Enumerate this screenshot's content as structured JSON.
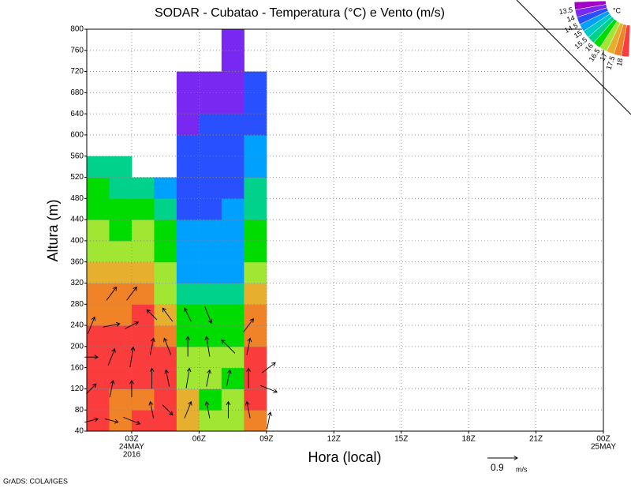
{
  "chart_data": {
    "type": "contour",
    "title": "SODAR - Cubatao - Temperatura (°C) e Vento (m/s)",
    "xlabel": "Hora (local)",
    "ylabel": "Altura (m)",
    "credit": "GrADS: COLA/IGES",
    "x": [
      1.5,
      2.5,
      3.5,
      4.5,
      5.5,
      6.5,
      7.5,
      8.5
    ],
    "y": [
      60,
      100,
      140,
      180,
      220,
      260,
      300,
      340,
      380,
      420,
      460,
      500,
      540,
      580,
      620,
      660,
      700,
      740,
      780
    ],
    "z": [
      [
        18.2,
        18.2,
        18.2,
        18.2,
        18.2,
        17.75,
        17.75,
        17.25,
        16.75,
        16.75,
        16.25,
        16.25,
        15.75,
        null,
        null,
        null,
        null,
        null,
        null
      ],
      [
        17.75,
        17.75,
        18.2,
        18.2,
        18.2,
        17.75,
        17.75,
        17.25,
        16.75,
        16.25,
        16.25,
        15.75,
        15.75,
        null,
        null,
        null,
        null,
        null,
        null
      ],
      [
        18.2,
        17.75,
        18.2,
        18.2,
        18.2,
        18.2,
        17.75,
        17.25,
        16.75,
        16.75,
        16.25,
        15.75,
        null,
        null,
        null,
        null,
        null,
        null,
        null
      ],
      [
        18.2,
        18.2,
        18.2,
        18.2,
        17.75,
        17.25,
        16.75,
        16.75,
        16.25,
        16.25,
        15.75,
        14.75,
        null,
        null,
        null,
        null,
        null,
        null,
        null
      ],
      [
        17.25,
        17.25,
        16.75,
        16.75,
        16.25,
        16.25,
        15.75,
        14.75,
        14.75,
        14.75,
        14.25,
        14.25,
        14.25,
        14.25,
        13.75,
        13.75,
        13.75,
        null,
        null
      ],
      [
        16.75,
        16.25,
        16.75,
        16.75,
        16.25,
        16.25,
        15.75,
        14.75,
        14.75,
        14.75,
        14.25,
        14.25,
        14.25,
        14.25,
        14.25,
        13.75,
        13.75,
        null,
        null
      ],
      [
        16.75,
        16.75,
        16.25,
        16.75,
        16.25,
        16.25,
        15.75,
        14.75,
        14.75,
        14.75,
        14.75,
        14.25,
        14.25,
        14.25,
        14.25,
        13.75,
        13.75,
        13.75,
        13.75
      ],
      [
        17.75,
        18.2,
        18.2,
        18.2,
        17.75,
        17.75,
        17.25,
        16.75,
        16.25,
        16.25,
        15.75,
        15.75,
        14.75,
        14.75,
        14.25,
        14.25,
        14.25,
        null,
        null
      ]
    ],
    "levels": [
      13.5,
      14,
      14.5,
      15,
      15.5,
      16,
      16.5,
      17,
      17.5,
      18
    ],
    "colors": [
      "#a000c8",
      "#7828f0",
      "#2850ff",
      "#00a0ff",
      "#00c8c8",
      "#00d28c",
      "#00dc00",
      "#a0e632",
      "#e6af2d",
      "#f08228",
      "#fa3c3c"
    ],
    "colorbar_unit": "°C",
    "xlim": [
      1,
      24
    ],
    "xticks": [
      {
        "value": 3,
        "label": "03Z"
      },
      {
        "value": 6,
        "label": "06Z"
      },
      {
        "value": 9,
        "label": "09Z"
      },
      {
        "value": 12,
        "label": "12Z"
      },
      {
        "value": 15,
        "label": "15Z"
      },
      {
        "value": 18,
        "label": "18Z"
      },
      {
        "value": 21,
        "label": "21Z"
      },
      {
        "value": 24,
        "label": "00Z"
      }
    ],
    "date_labels": [
      {
        "value": 3,
        "lines": [
          "24MAY",
          "2016"
        ]
      },
      {
        "value": 24,
        "lines": [
          "25MAY"
        ]
      }
    ],
    "ylim": [
      40,
      800
    ],
    "yticks": [
      40,
      80,
      120,
      160,
      200,
      240,
      280,
      320,
      360,
      400,
      440,
      480,
      520,
      560,
      600,
      640,
      680,
      720,
      760,
      800
    ],
    "grid": true,
    "wind": {
      "x": [
        1.2,
        1.2,
        1.2,
        1.2,
        2.1,
        2.1,
        2.1,
        2.1,
        2.1,
        3,
        3,
        3,
        3,
        3,
        3.9,
        3.9,
        3.9,
        3.9,
        4.6,
        4.6,
        4.6,
        4.6,
        5.5,
        5.5,
        5.5,
        5.5,
        6.4,
        6.4,
        6.4,
        6.4,
        7.3,
        7.3,
        7.3,
        8.2,
        8.2,
        8.2,
        8.2,
        9.1,
        9.1,
        9.1
      ],
      "y": [
        60,
        120,
        180,
        240,
        60,
        120,
        180,
        240,
        300,
        60,
        120,
        180,
        240,
        300,
        80,
        140,
        200,
        260,
        80,
        140,
        200,
        260,
        80,
        140,
        200,
        260,
        80,
        140,
        200,
        260,
        80,
        140,
        200,
        80,
        140,
        200,
        240,
        60,
        120,
        160
      ],
      "u": [
        0.4,
        0.3,
        0.4,
        0.2,
        0.4,
        0.1,
        0.2,
        0.5,
        0.3,
        0.5,
        0,
        0.1,
        0.4,
        0.3,
        -0.1,
        0,
        0.1,
        -0.3,
        0.3,
        -0.1,
        -0.2,
        -0.3,
        0.2,
        0.1,
        0,
        -0.2,
        -0.1,
        0.1,
        -0.1,
        0.2,
        0,
        0.1,
        -0.4,
        -0.1,
        0,
        0.1,
        0.3,
        0.1,
        0.5,
        0.4
      ],
      "v": [
        0.1,
        0.3,
        0,
        0.5,
        -0.1,
        0.5,
        0.5,
        0.1,
        0.4,
        -0.2,
        0.5,
        0.6,
        0.2,
        0.4,
        0.5,
        0.6,
        0.5,
        0.3,
        -0.3,
        0.5,
        0.5,
        0.4,
        0.5,
        0.6,
        0.6,
        0.4,
        0.5,
        0.5,
        0.6,
        -0.5,
        0.5,
        0.5,
        0.4,
        0.5,
        0.6,
        0.5,
        0.4,
        0.5,
        -0.2,
        0.3
      ]
    },
    "ref_vector": {
      "speed": 0.9,
      "unit": "m/s"
    }
  }
}
